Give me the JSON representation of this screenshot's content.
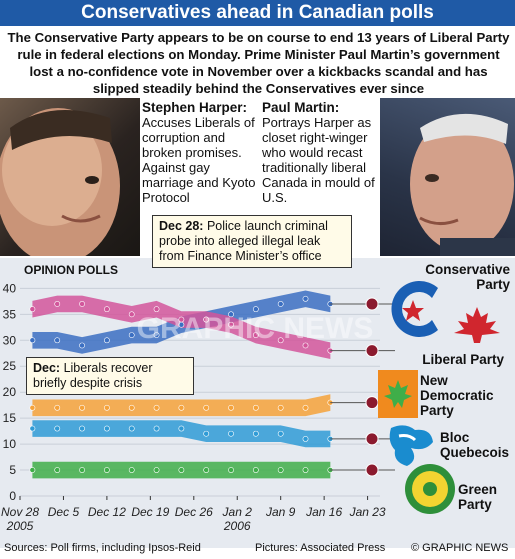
{
  "header": {
    "title": "Conservatives ahead in Canadian polls",
    "intro": "The Conservative Party appears to be on course to end 13 years of Liberal Party rule in federal elections on Monday. Prime Minister Paul Martin’s government lost a no-confidence vote in November over a kickbacks scandal and has slipped steadily behind the Conservatives ever since"
  },
  "leaders": [
    {
      "name": "Stephen Harper:",
      "text": "Accuses Liberals of corruption and broken promises. Against gay marriage and Kyoto Protocol"
    },
    {
      "name": "Paul Martin:",
      "text": "Portrays Harper as closet right-winger who would recast traditionally liberal Canada in mould of U.S."
    }
  ],
  "callouts": {
    "dec28_date": "Dec 28:",
    "dec28_text": "Police launch criminal probe into alleged illegal leak from Finance Minister’s office",
    "dec_date": "Dec:",
    "dec_text": "Liberals recover briefly despite crisis"
  },
  "chart_data": {
    "type": "line",
    "title": "OPINION POLLS",
    "ylim": [
      0,
      42
    ],
    "yticks": [
      0,
      5,
      10,
      15,
      20,
      25,
      30,
      35,
      40
    ],
    "xlim": [
      0,
      58
    ],
    "xticks": [
      {
        "pos": 0,
        "label": "Nov 28",
        "sub": "2005"
      },
      {
        "pos": 7,
        "label": "Dec 5",
        "sub": ""
      },
      {
        "pos": 14,
        "label": "Dec 12",
        "sub": ""
      },
      {
        "pos": 21,
        "label": "Dec 19",
        "sub": ""
      },
      {
        "pos": 28,
        "label": "Dec 26",
        "sub": ""
      },
      {
        "pos": 35,
        "label": "Jan 2",
        "sub": "2006"
      },
      {
        "pos": 42,
        "label": "Jan 9",
        "sub": ""
      },
      {
        "pos": 49,
        "label": "Jan 16",
        "sub": ""
      },
      {
        "pos": 56,
        "label": "Jan 23",
        "sub": ""
      }
    ],
    "series": [
      {
        "name": "Conservative Party",
        "color": "#3b6fc2",
        "x": [
          2,
          6,
          10,
          14,
          18,
          22,
          26,
          30,
          34,
          38,
          42,
          46,
          50
        ],
        "y": [
          30,
          30,
          29,
          30,
          31,
          31,
          33,
          34,
          35,
          36,
          37,
          38,
          37
        ]
      },
      {
        "name": "Liberal Party",
        "color": "#d2569b",
        "x": [
          2,
          6,
          10,
          14,
          18,
          22,
          26,
          30,
          34,
          38,
          42,
          46,
          50
        ],
        "y": [
          36,
          37,
          37,
          36,
          35,
          36,
          34,
          34,
          33,
          31,
          30,
          29,
          28
        ]
      },
      {
        "name": "New Democratic Party",
        "color": "#f5a23a",
        "x": [
          2,
          6,
          10,
          14,
          18,
          22,
          26,
          30,
          34,
          38,
          42,
          46,
          50
        ],
        "y": [
          17,
          17,
          17,
          17,
          17,
          17,
          17,
          17,
          17,
          17,
          17,
          17,
          18
        ]
      },
      {
        "name": "Bloc Quebecois",
        "color": "#2f9bd6",
        "x": [
          2,
          6,
          10,
          14,
          18,
          22,
          26,
          30,
          34,
          38,
          42,
          46,
          50
        ],
        "y": [
          13,
          13,
          13,
          13,
          13,
          13,
          13,
          12,
          12,
          12,
          12,
          11,
          11
        ]
      },
      {
        "name": "Green Party",
        "color": "#3fae49",
        "x": [
          2,
          6,
          10,
          14,
          18,
          22,
          26,
          30,
          34,
          38,
          42,
          46,
          50
        ],
        "y": [
          5,
          5,
          5,
          5,
          5,
          5,
          5,
          5,
          5,
          5,
          5,
          5,
          5
        ]
      }
    ]
  },
  "party_labels": [
    "Conservative Party",
    "Liberal Party",
    "New Democratic Party",
    "Bloc Quebecois",
    "Green Party"
  ],
  "watermark": "GRAPHIC NEWS",
  "footer": {
    "sources": "Sources: Poll firms, including Ipsos-Reid",
    "pictures": "Pictures: Associated Press",
    "credit": "© GRAPHIC NEWS"
  }
}
